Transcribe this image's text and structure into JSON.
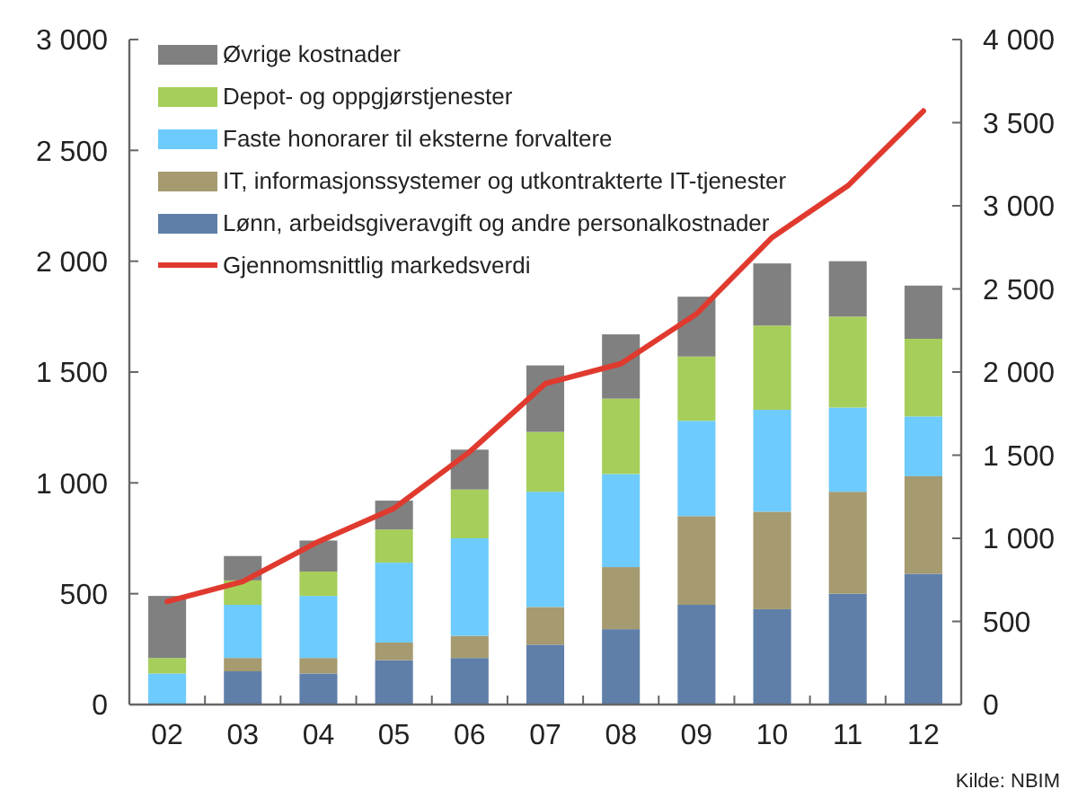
{
  "chart_data": {
    "type": "bar",
    "stacked": true,
    "categories": [
      "02",
      "03",
      "04",
      "05",
      "06",
      "07",
      "08",
      "09",
      "10",
      "11",
      "12"
    ],
    "series": [
      {
        "name": "Lønn, arbeidsgiveravgift og andre personalkostnader",
        "color": "#5f7fa8",
        "values": [
          0,
          150,
          140,
          200,
          210,
          270,
          340,
          450,
          430,
          500,
          590
        ]
      },
      {
        "name": "IT, informasjonssystemer og utkontrakterte IT-tjenester",
        "color": "#a59a70",
        "values": [
          0,
          60,
          70,
          80,
          100,
          170,
          280,
          400,
          440,
          460,
          440
        ]
      },
      {
        "name": "Faste honorarer til eksterne forvaltere",
        "color": "#6dcbfd",
        "values": [
          140,
          240,
          280,
          360,
          440,
          520,
          420,
          430,
          460,
          380,
          270
        ]
      },
      {
        "name": "Depot- og oppgjørstjenester",
        "color": "#a6ce5a",
        "values": [
          70,
          110,
          110,
          150,
          220,
          270,
          340,
          290,
          380,
          410,
          350
        ]
      },
      {
        "name": "Øvrige kostnader",
        "color": "#808080",
        "values": [
          280,
          110,
          140,
          130,
          180,
          300,
          290,
          270,
          280,
          250,
          240
        ]
      },
      {
        "name": "Gjennomsnittlig markedsverdi",
        "type": "line",
        "axis": "y2",
        "color": "#e03a2f",
        "values": [
          620,
          740,
          980,
          1180,
          1520,
          1930,
          2050,
          2350,
          2810,
          3120,
          3570
        ]
      }
    ],
    "ylim": [
      0,
      3000
    ],
    "yticks": [
      {
        "value": 0,
        "label": "0"
      },
      {
        "value": 500,
        "label": "500"
      },
      {
        "value": 1000,
        "label": "1 000"
      },
      {
        "value": 1500,
        "label": "1 500"
      },
      {
        "value": 2000,
        "label": "2 000"
      },
      {
        "value": 2500,
        "label": "2 500"
      },
      {
        "value": 3000,
        "label": "3 000"
      }
    ],
    "y2lim": [
      0,
      4000
    ],
    "y2ticks": [
      {
        "value": 0,
        "label": "0"
      },
      {
        "value": 500,
        "label": "500"
      },
      {
        "value": 1000,
        "label": "1 000"
      },
      {
        "value": 1500,
        "label": "1 500"
      },
      {
        "value": 2000,
        "label": "2 000"
      },
      {
        "value": 2500,
        "label": "2 500"
      },
      {
        "value": 3000,
        "label": "3 000"
      },
      {
        "value": 3500,
        "label": "3 500"
      },
      {
        "value": 4000,
        "label": "4 000"
      }
    ],
    "legend": "top left",
    "grid": false,
    "annotations": [
      "Kilde: NBIM"
    ]
  }
}
